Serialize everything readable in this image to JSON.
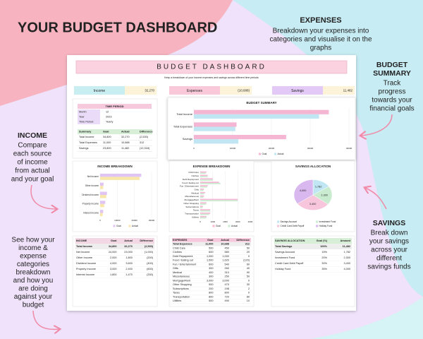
{
  "header": {
    "title": "YOUR BUDGET DASHBOARD"
  },
  "callouts": {
    "expenses": {
      "title": "EXPENSES",
      "lines": [
        "Breakdown your expenses into",
        "categories and visualise it on the",
        "graphs"
      ]
    },
    "budget_summary": {
      "title": [
        "BUDGET",
        "SUMMARY"
      ],
      "lines": [
        "Track",
        "progress",
        "towards your",
        "financial goals"
      ]
    },
    "income": {
      "title": "INCOME",
      "lines": [
        "Compare",
        "each source",
        "of income",
        "from actual",
        "and your goal"
      ]
    },
    "breakdown": {
      "lines": [
        "See how your",
        "income &",
        "expense",
        "categories",
        "breakdown",
        "and how you",
        "are doing",
        "against your",
        "budget"
      ]
    },
    "savings": {
      "title": "SAVINGS",
      "lines": [
        "Break down",
        "your savings",
        "across your",
        "different",
        "savings funds"
      ]
    }
  },
  "dashboard": {
    "title": "BUDGET DASHBOARD",
    "subtitle": "Keep a breakdown of your income expenses and savings across different time periods",
    "kpis": [
      {
        "label": "Income",
        "value": "32,270"
      },
      {
        "label": "Expenses",
        "value": "(10,688)"
      },
      {
        "label": "Savings",
        "value": "11,482"
      }
    ],
    "time_period": {
      "title": "TIME PERIOD",
      "rows": [
        [
          "Month",
          "12"
        ],
        [
          "Year",
          "2023"
        ],
        [
          "Time Period",
          "Yearly"
        ]
      ]
    },
    "summary": {
      "header": [
        "Summary",
        "Goal",
        "Actual",
        "Difference"
      ],
      "rows": [
        [
          "Total Income",
          "34,800",
          "32,270",
          "(2,530)"
        ],
        [
          "Total Expenses",
          "11,000",
          "10,688",
          "312"
        ],
        [
          "Savings",
          "23,800",
          "11,482",
          "(12,318)"
        ]
      ]
    },
    "charts": [
      {
        "type": "bar",
        "title": "BUDGET SUMMARY",
        "horizontal": true,
        "categories": [
          "Total Income",
          "Total Expenses",
          "Savings"
        ],
        "series": [
          {
            "name": "Goal",
            "color": "#f4b6d2",
            "values": [
              34800,
              11000,
              23800
            ]
          },
          {
            "name": "Actual",
            "color": "#bfe6f2",
            "values": [
              32270,
              10688,
              11482
            ]
          }
        ],
        "xlim": [
          0,
          40000
        ],
        "xticks": [
          0,
          10000,
          20000,
          30000,
          40000
        ]
      },
      {
        "type": "bar",
        "title": "INCOME BREAKDOWN",
        "horizontal": true,
        "categories": [
          "Net Income",
          "Other Income",
          "Dividend Income",
          "Property Income",
          "Interest Income"
        ],
        "series": [
          {
            "name": "Goal",
            "color": "#e0c4f4",
            "values": [
              24000,
              2000,
              4000,
              3000,
              1800
            ]
          },
          {
            "name": "Actual",
            "color": "#f8e7a8",
            "values": [
              23000,
              1800,
              3600,
              2400,
              1470
            ]
          }
        ],
        "xlim": [
          0,
          30000
        ],
        "xticks": [
          0,
          10000,
          20000,
          30000
        ]
      },
      {
        "type": "bar",
        "title": "EXPENSE BREAKDOWN",
        "horizontal": true,
        "categories": [
          "Child Care",
          "Clothes",
          "Debt Repayment",
          "Food / Eating out",
          "Fun / Entertainment",
          "Gifts",
          "Medical",
          "Miscellaneous",
          "Mortgage/Rent",
          "Other Shopping",
          "Subscriptions",
          "Taxes",
          "Transportation",
          "Utilities"
        ],
        "series": [
          {
            "name": "Goal",
            "color": "#f4b6d2",
            "values": [
              500,
              600,
              1000,
              1500,
              600,
              300,
              400,
              300,
              3000,
              500,
              200,
              800,
              800,
              500
            ]
          },
          {
            "name": "Actual",
            "color": "#c9ecd0",
            "values": [
              450,
              580,
              1000,
              1620,
              540,
              260,
              310,
              250,
              3000,
              470,
              198,
              800,
              720,
              490
            ]
          }
        ],
        "xlim": [
          0,
          4000
        ],
        "xticks": [
          0,
          1000,
          2000,
          3000,
          4000
        ]
      },
      {
        "type": "pie",
        "title": "SAVINGS ALLOCATION",
        "categories": [
          "Savings Account",
          "Investment Fund",
          "Credit Card Debt Payoff",
          "Holiday Fund"
        ],
        "values": [
          1782,
          2300,
          3400,
          4000
        ],
        "value_labels": [
          "1,782",
          "2,300",
          "3,400",
          "4,000"
        ],
        "colors": [
          "#bfe6f2",
          "#c9ecd0",
          "#f7c6dd",
          "#d9b8f0"
        ]
      }
    ],
    "tables": [
      {
        "header": [
          "INCOME",
          "Goal",
          "Actual",
          "Difference"
        ],
        "rows": [
          [
            "Total Income",
            "34,800",
            "32,270",
            "(2,530)"
          ],
          [
            "Net Income",
            "24,000",
            "23,000",
            "(1,000)"
          ],
          [
            "Other Income",
            "2,000",
            "1,800",
            "(200)"
          ],
          [
            "Dividend Income",
            "4,000",
            "3,600",
            "(400)"
          ],
          [
            "Property Income",
            "3,000",
            "2,400",
            "(600)"
          ],
          [
            "Interest Income",
            "1,800",
            "1,470",
            "(330)"
          ]
        ]
      },
      {
        "header": [
          "EXPENSES",
          "Goal",
          "Actual",
          "Difference"
        ],
        "rows": [
          [
            "Total Expenses",
            "11,000",
            "10,688",
            "312"
          ],
          [
            "Child Care",
            "500",
            "450",
            "50"
          ],
          [
            "Clothes",
            "600",
            "580",
            "20"
          ],
          [
            "Debt Repayment",
            "1,000",
            "1,000",
            "0"
          ],
          [
            "Food / Eating out",
            "1,500",
            "1,620",
            "(120)"
          ],
          [
            "Fun / Entertainment",
            "600",
            "540",
            "60"
          ],
          [
            "Gifts",
            "300",
            "260",
            "40"
          ],
          [
            "Medical",
            "400",
            "310",
            "90"
          ],
          [
            "Miscellaneous",
            "300",
            "250",
            "50"
          ],
          [
            "Mortgage/Rent",
            "3,000",
            "3,000",
            "0"
          ],
          [
            "Other Shopping",
            "500",
            "470",
            "30"
          ],
          [
            "Subscriptions",
            "200",
            "198",
            "2"
          ],
          [
            "Taxes",
            "800",
            "800",
            "0"
          ],
          [
            "Transportation",
            "800",
            "720",
            "80"
          ],
          [
            "Utilities",
            "500",
            "490",
            "10"
          ]
        ]
      },
      {
        "header": [
          "SAVINGS ALLOCATION",
          "Goal (%)",
          "Amount"
        ],
        "rows": [
          [
            "Total Savings",
            "100%",
            "11,482"
          ],
          [
            "Savings Account",
            "15%",
            "1,782"
          ],
          [
            "Investment Fund",
            "20%",
            "2,300"
          ],
          [
            "Credit Card Debt Payoff",
            "30%",
            "3,400"
          ],
          [
            "Holiday Fund",
            "35%",
            "4,000"
          ]
        ]
      }
    ]
  }
}
